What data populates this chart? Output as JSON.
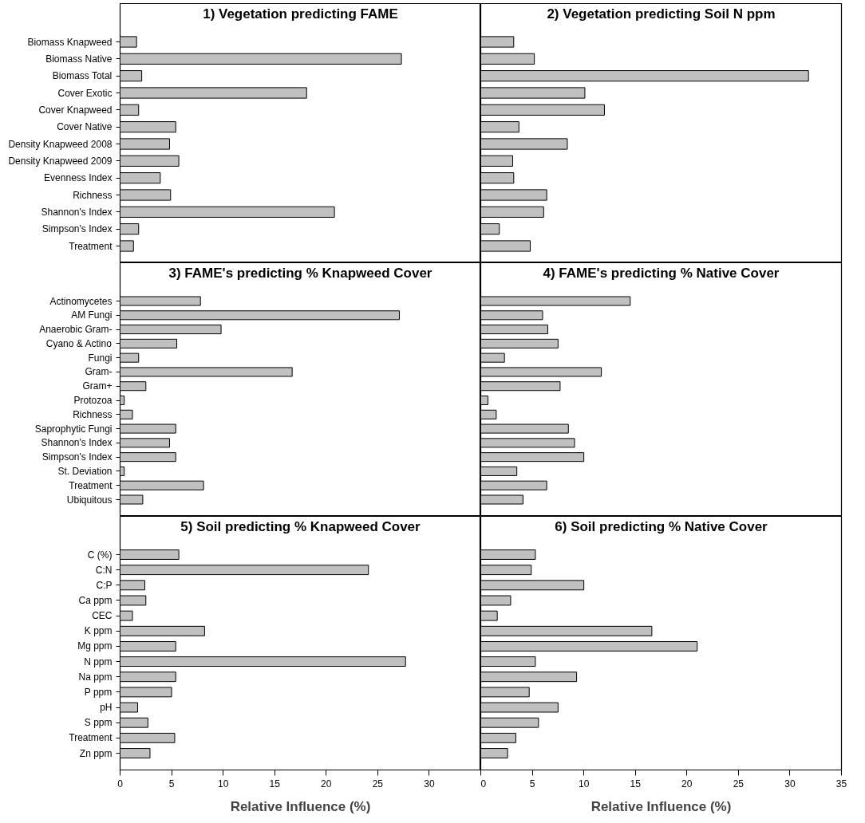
{
  "chart_data": [
    {
      "type": "bar",
      "orientation": "horizontal",
      "title": "1) Vegetation predicting FAME",
      "categories": [
        "Biomass Knapweed",
        "Biomass Native",
        "Biomass Total",
        "Cover Exotic",
        "Cover Knapweed",
        "Cover Native",
        "Density Knapweed 2008",
        "Density Knapweed 2009",
        "Evenness Index",
        "Richness",
        "Shannon's Index",
        "Simpson's Index",
        "Treatment"
      ],
      "values": [
        1.6,
        27.3,
        2.1,
        18.1,
        1.8,
        5.4,
        4.8,
        5.7,
        3.9,
        4.9,
        20.8,
        1.8,
        1.3
      ],
      "color": "#c0c0c0",
      "xlim": [
        0,
        35
      ],
      "xticks": [
        0,
        5,
        10,
        15,
        20,
        25,
        30
      ],
      "tick_labels": "y"
    },
    {
      "type": "bar",
      "orientation": "horizontal",
      "title": "2) Vegetation predicting Soil N ppm",
      "categories": [
        null,
        null,
        null,
        null,
        null,
        null,
        null,
        null,
        null,
        null,
        null,
        null,
        null
      ],
      "values": [
        3.2,
        5.2,
        31.8,
        10.1,
        12.0,
        3.7,
        8.4,
        3.1,
        3.2,
        6.4,
        6.1,
        1.8,
        4.8
      ],
      "color": "#c0c0c0",
      "xlim": [
        0,
        35
      ],
      "xticks": [
        0,
        5,
        10,
        15,
        20,
        25,
        30,
        35
      ],
      "tick_labels": false
    },
    {
      "type": "bar",
      "orientation": "horizontal",
      "title": "3) FAME's predicting % Knapweed Cover",
      "categories": [
        "Actinomycetes",
        "AM Fungi",
        "Anaerobic Gram-",
        "Cyano & Actino",
        "Fungi",
        "Gram-",
        "Gram+",
        "Protozoa",
        "Richness",
        "Saprophytic Fungi",
        "Shannon's Index",
        "Simpson's Index",
        "St. Deviation",
        "Treatment",
        "Ubiquitous"
      ],
      "values": [
        7.8,
        27.1,
        9.8,
        5.5,
        1.8,
        16.7,
        2.5,
        0.4,
        1.2,
        5.4,
        4.8,
        5.4,
        0.4,
        8.1,
        2.2
      ],
      "color": "#c0c0c0",
      "xlim": [
        0,
        35
      ],
      "xticks": [
        0,
        5,
        10,
        15,
        20,
        25,
        30
      ],
      "tick_labels": "y"
    },
    {
      "type": "bar",
      "orientation": "horizontal",
      "title": "4) FAME's predicting % Native Cover",
      "categories": [
        null,
        null,
        null,
        null,
        null,
        null,
        null,
        null,
        null,
        null,
        null,
        null,
        null,
        null,
        null
      ],
      "values": [
        14.5,
        6.0,
        6.5,
        7.5,
        2.3,
        11.7,
        7.7,
        0.7,
        1.5,
        8.5,
        9.1,
        10.0,
        3.5,
        6.4,
        4.1
      ],
      "color": "#c0c0c0",
      "xlim": [
        0,
        35
      ],
      "xticks": [
        0,
        5,
        10,
        15,
        20,
        25,
        30,
        35
      ],
      "tick_labels": false
    },
    {
      "type": "bar",
      "orientation": "horizontal",
      "title": "5) Soil predicting % Knapweed Cover",
      "xlabel": "Relative Influence (%)",
      "categories": [
        "C (%)",
        "C:N",
        "C:P",
        "Ca ppm",
        "CEC",
        "K ppm",
        "Mg ppm",
        "N ppm",
        "Na ppm",
        "P ppm",
        "pH",
        "S ppm",
        "Treatment",
        "Zn ppm"
      ],
      "values": [
        5.7,
        24.1,
        2.4,
        2.5,
        1.2,
        8.2,
        5.4,
        27.7,
        5.4,
        5.0,
        1.7,
        2.7,
        5.3,
        2.9
      ],
      "color": "#c0c0c0",
      "xlim": [
        0,
        35
      ],
      "xticks": [
        0,
        5,
        10,
        15,
        20,
        25,
        30
      ]
    },
    {
      "type": "bar",
      "orientation": "horizontal",
      "title": "6) Soil predicting % Native Cover",
      "xlabel": "Relative Influence (%)",
      "categories": [
        null,
        null,
        null,
        null,
        null,
        null,
        null,
        null,
        null,
        null,
        null,
        null,
        null,
        null
      ],
      "values": [
        5.3,
        4.9,
        10.0,
        2.9,
        1.6,
        16.6,
        21.0,
        5.3,
        9.3,
        4.7,
        7.5,
        5.6,
        3.4,
        2.6
      ],
      "color": "#c0c0c0",
      "xlim": [
        0,
        35
      ],
      "xticks": [
        0,
        5,
        10,
        15,
        20,
        25,
        30,
        35
      ],
      "tick_labels": "x"
    }
  ]
}
